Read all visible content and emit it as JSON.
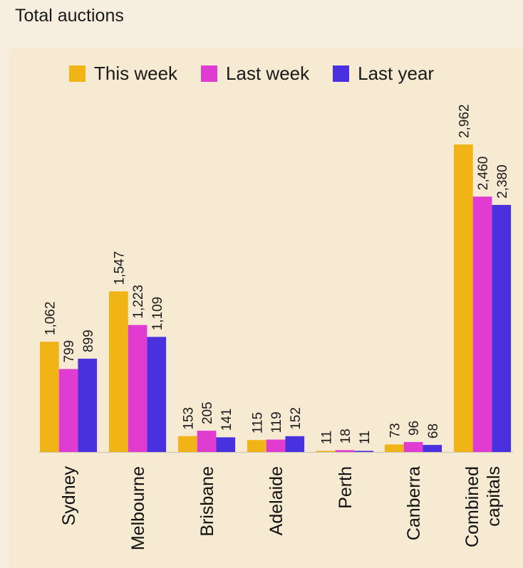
{
  "title": "Total auctions",
  "colors": {
    "this_week": "#f0b417",
    "last_week": "#e03cd2",
    "last_year": "#4a31e0",
    "background": "#f7eee0",
    "panel": "#f7ead3",
    "axis": "#c9c1b4"
  },
  "legend": {
    "this_week": "This week",
    "last_week": "Last week",
    "last_year": "Last year"
  },
  "chart_data": {
    "type": "bar",
    "title": "Total auctions",
    "categories": [
      [
        "Sydney"
      ],
      [
        "Melbourne"
      ],
      [
        "Brisbane"
      ],
      [
        "Adelaide"
      ],
      [
        "Perth"
      ],
      [
        "Canberra"
      ],
      [
        "Combined",
        "capitals"
      ]
    ],
    "series": [
      {
        "name": "This week",
        "values": [
          1062,
          1547,
          153,
          115,
          11,
          73,
          2962
        ],
        "labels": [
          "1,062",
          "1,547",
          "153",
          "115",
          "11",
          "73",
          "2,962"
        ]
      },
      {
        "name": "Last week",
        "values": [
          799,
          1223,
          205,
          119,
          18,
          96,
          2460
        ],
        "labels": [
          "799",
          "1,223",
          "205",
          "119",
          "18",
          "96",
          "2,460"
        ]
      },
      {
        "name": "Last year",
        "values": [
          899,
          1109,
          141,
          152,
          11,
          68,
          2380
        ],
        "labels": [
          "899",
          "1,109",
          "141",
          "152",
          "11",
          "68",
          "2,380"
        ]
      }
    ],
    "ylim": [
      0,
      2962
    ],
    "grid": false,
    "legend_position": "top",
    "xlabel": "",
    "ylabel": ""
  }
}
